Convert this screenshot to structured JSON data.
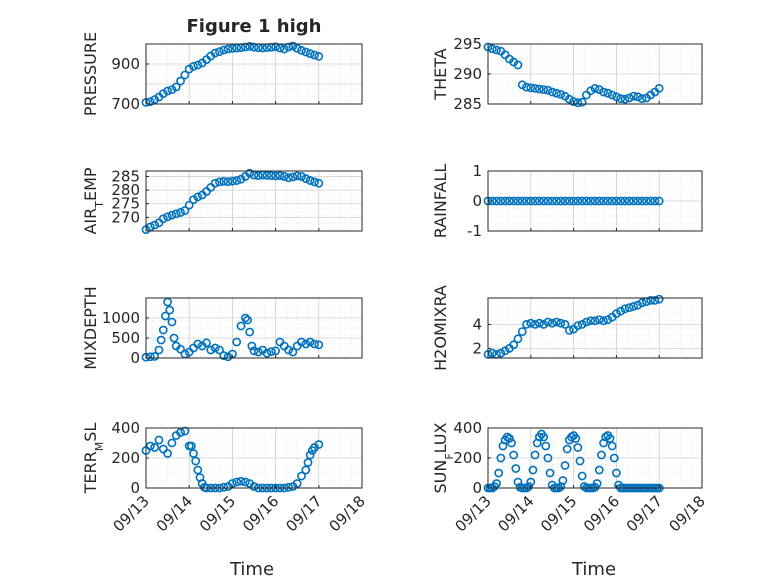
{
  "chart_data": [
    {
      "type": "scatter",
      "title": "Figure 1 high",
      "ylabel": "PRESSURE",
      "xlabel": "",
      "xlim": [
        "09/13",
        "09/18"
      ],
      "ylim": [
        700,
        1000
      ],
      "yticks": [
        "700",
        "900"
      ],
      "yticks_extra": [
        "800"
      ],
      "xticks": [],
      "grid": true,
      "marker": "o",
      "color": "#0072BD",
      "x": [
        0,
        0.1,
        0.2,
        0.3,
        0.4,
        0.5,
        0.6,
        0.7,
        0.8,
        0.9,
        1.0,
        1.1,
        1.2,
        1.3,
        1.4,
        1.5,
        1.6,
        1.7,
        1.8,
        1.9,
        2.0,
        2.1,
        2.2,
        2.3,
        2.4,
        2.5,
        2.6,
        2.7,
        2.8,
        2.9,
        3.0,
        3.1,
        3.2,
        3.3,
        3.4,
        3.5,
        3.6,
        3.7,
        3.8,
        3.9,
        4.0
      ],
      "values": [
        708,
        712,
        722,
        735,
        752,
        765,
        772,
        785,
        815,
        845,
        875,
        888,
        895,
        905,
        922,
        940,
        955,
        962,
        970,
        975,
        978,
        980,
        982,
        985,
        988,
        984,
        982,
        980,
        982,
        984,
        986,
        980,
        975,
        985,
        990,
        978,
        968,
        960,
        952,
        945,
        938
      ]
    },
    {
      "type": "scatter",
      "title": "",
      "ylabel": "THETA",
      "xlabel": "",
      "xlim": [
        "09/13",
        "09/18"
      ],
      "ylim": [
        285,
        295
      ],
      "yticks": [
        "285",
        "290",
        "295"
      ],
      "xticks": [],
      "grid": true,
      "marker": "o",
      "color": "#0072BD",
      "x": [
        0,
        0.1,
        0.2,
        0.3,
        0.4,
        0.5,
        0.6,
        0.7,
        0.8,
        0.9,
        1.0,
        1.1,
        1.2,
        1.3,
        1.4,
        1.5,
        1.6,
        1.7,
        1.8,
        1.9,
        2.0,
        2.1,
        2.2,
        2.3,
        2.4,
        2.5,
        2.6,
        2.7,
        2.8,
        2.9,
        3.0,
        3.1,
        3.2,
        3.3,
        3.4,
        3.5,
        3.6,
        3.7,
        3.8,
        3.9,
        4.0
      ],
      "values": [
        294.5,
        294.2,
        294.0,
        293.8,
        293.2,
        292.5,
        292.0,
        291.5,
        288.2,
        287.8,
        287.7,
        287.6,
        287.5,
        287.4,
        287.3,
        287.0,
        286.8,
        286.6,
        286.3,
        285.8,
        285.4,
        285.2,
        285.3,
        286.5,
        287.2,
        287.6,
        287.4,
        287.0,
        286.8,
        286.5,
        286.2,
        285.9,
        285.8,
        286.0,
        286.3,
        286.2,
        285.9,
        286.0,
        286.5,
        287.0,
        287.6
      ]
    },
    {
      "type": "scatter",
      "title": "",
      "ylabel": "AIR_TEMP",
      "xlabel": "",
      "xlim": [
        "09/13",
        "09/18"
      ],
      "ylim": [
        265,
        287
      ],
      "yticks": [
        "270",
        "275",
        "280",
        "285"
      ],
      "xticks": [],
      "grid": true,
      "marker": "o",
      "color": "#0072BD",
      "x": [
        0,
        0.1,
        0.2,
        0.3,
        0.4,
        0.5,
        0.6,
        0.7,
        0.8,
        0.9,
        1.0,
        1.1,
        1.2,
        1.3,
        1.4,
        1.5,
        1.6,
        1.7,
        1.8,
        1.9,
        2.0,
        2.1,
        2.2,
        2.3,
        2.4,
        2.5,
        2.6,
        2.7,
        2.8,
        2.9,
        3.0,
        3.1,
        3.2,
        3.3,
        3.4,
        3.5,
        3.6,
        3.7,
        3.8,
        3.9,
        4.0
      ],
      "values": [
        265.5,
        266.5,
        267.2,
        268.0,
        269.5,
        270.2,
        270.8,
        271.3,
        271.8,
        272.5,
        274.5,
        276.5,
        277.5,
        278.2,
        279.5,
        281.0,
        282.5,
        283.0,
        283.2,
        283.1,
        283.3,
        283.5,
        284.0,
        285.0,
        286.2,
        285.5,
        285.3,
        285.5,
        285.4,
        285.3,
        285.2,
        285.3,
        285.0,
        284.5,
        284.8,
        285.2,
        285.0,
        284.2,
        283.5,
        283.0,
        282.5
      ]
    },
    {
      "type": "scatter",
      "title": "",
      "ylabel": "RAINFALL",
      "xlabel": "",
      "xlim": [
        "09/13",
        "09/18"
      ],
      "ylim": [
        -1,
        1
      ],
      "yticks": [
        "-1",
        "0",
        "1"
      ],
      "xticks": [],
      "grid": true,
      "marker": "o",
      "color": "#0072BD",
      "x": [
        0,
        0.1,
        0.2,
        0.3,
        0.4,
        0.5,
        0.6,
        0.7,
        0.8,
        0.9,
        1.0,
        1.1,
        1.2,
        1.3,
        1.4,
        1.5,
        1.6,
        1.7,
        1.8,
        1.9,
        2.0,
        2.1,
        2.2,
        2.3,
        2.4,
        2.5,
        2.6,
        2.7,
        2.8,
        2.9,
        3.0,
        3.1,
        3.2,
        3.3,
        3.4,
        3.5,
        3.6,
        3.7,
        3.8,
        3.9,
        4.0
      ],
      "values": [
        0,
        0,
        0,
        0,
        0,
        0,
        0,
        0,
        0,
        0,
        0,
        0,
        0,
        0,
        0,
        0,
        0,
        0,
        0,
        0,
        0,
        0,
        0,
        0,
        0,
        0,
        0,
        0,
        0,
        0,
        0,
        0,
        0,
        0,
        0,
        0,
        0,
        0,
        0,
        0,
        0
      ]
    },
    {
      "type": "scatter",
      "title": "",
      "ylabel": "MIXDEPTH",
      "xlabel": "",
      "xlim": [
        "09/13",
        "09/18"
      ],
      "ylim": [
        0,
        1500
      ],
      "yticks": [
        "0",
        "500",
        "1000"
      ],
      "xticks": [],
      "grid": true,
      "marker": "o",
      "color": "#0072BD",
      "x": [
        0,
        0.1,
        0.2,
        0.3,
        0.35,
        0.4,
        0.45,
        0.5,
        0.55,
        0.6,
        0.65,
        0.7,
        0.8,
        0.9,
        1.0,
        1.1,
        1.2,
        1.3,
        1.4,
        1.5,
        1.6,
        1.7,
        1.8,
        1.9,
        2.0,
        2.1,
        2.2,
        2.3,
        2.35,
        2.4,
        2.45,
        2.5,
        2.6,
        2.7,
        2.8,
        2.9,
        3.0,
        3.1,
        3.2,
        3.3,
        3.4,
        3.5,
        3.6,
        3.7,
        3.8,
        3.9,
        4.0
      ],
      "values": [
        20,
        30,
        40,
        200,
        450,
        700,
        1050,
        1400,
        1200,
        900,
        500,
        300,
        220,
        100,
        150,
        250,
        350,
        300,
        380,
        200,
        250,
        200,
        60,
        30,
        100,
        400,
        800,
        1000,
        950,
        650,
        300,
        180,
        150,
        200,
        120,
        160,
        180,
        400,
        300,
        200,
        150,
        300,
        400,
        350,
        400,
        350,
        330
      ]
    },
    {
      "type": "scatter",
      "title": "",
      "ylabel": "H2OMIXRA",
      "xlabel": "",
      "xlim": [
        "09/13",
        "09/18"
      ],
      "ylim": [
        1.2,
        6.2
      ],
      "yticks": [
        "2",
        "4"
      ],
      "xticks": [],
      "grid": true,
      "marker": "o",
      "color": "#0072BD",
      "x": [
        0,
        0.1,
        0.2,
        0.3,
        0.4,
        0.5,
        0.6,
        0.7,
        0.8,
        0.9,
        1.0,
        1.1,
        1.2,
        1.3,
        1.4,
        1.5,
        1.6,
        1.7,
        1.8,
        1.9,
        2.0,
        2.1,
        2.2,
        2.3,
        2.4,
        2.5,
        2.6,
        2.7,
        2.8,
        2.9,
        3.0,
        3.1,
        3.2,
        3.3,
        3.4,
        3.5,
        3.6,
        3.7,
        3.8,
        3.9,
        4.0
      ],
      "values": [
        1.5,
        1.6,
        1.5,
        1.6,
        1.8,
        2.0,
        2.3,
        2.8,
        3.4,
        4.0,
        4.1,
        4.0,
        4.1,
        4.0,
        4.2,
        4.1,
        4.2,
        4.1,
        4.0,
        3.5,
        3.6,
        3.9,
        4.0,
        4.2,
        4.3,
        4.3,
        4.4,
        4.3,
        4.4,
        4.6,
        4.9,
        5.1,
        5.3,
        5.4,
        5.5,
        5.6,
        5.8,
        5.9,
        6.0,
        6.0,
        6.1
      ]
    },
    {
      "type": "scatter",
      "title": "",
      "ylabel": "TERR_MSL",
      "xlabel": "",
      "xlim": [
        "09/13",
        "09/18"
      ],
      "ylim": [
        0,
        400
      ],
      "yticks": [
        "0",
        "200",
        "400"
      ],
      "xticks": [
        "09/13",
        "09/14",
        "09/15",
        "09/16",
        "09/17",
        "09/18"
      ],
      "grid": true,
      "marker": "o",
      "color": "#0072BD",
      "x": [
        0,
        0.1,
        0.2,
        0.3,
        0.4,
        0.5,
        0.6,
        0.7,
        0.8,
        0.9,
        1.0,
        1.05,
        1.1,
        1.15,
        1.2,
        1.25,
        1.3,
        1.35,
        1.4,
        1.5,
        1.6,
        1.7,
        1.8,
        1.9,
        2.0,
        2.1,
        2.2,
        2.3,
        2.4,
        2.5,
        2.6,
        2.7,
        2.8,
        2.9,
        3.0,
        3.1,
        3.2,
        3.3,
        3.4,
        3.5,
        3.6,
        3.7,
        3.75,
        3.8,
        3.85,
        3.9,
        4.0
      ],
      "values": [
        250,
        280,
        270,
        320,
        260,
        230,
        300,
        350,
        370,
        380,
        280,
        280,
        230,
        180,
        120,
        70,
        30,
        5,
        0,
        0,
        0,
        0,
        5,
        10,
        30,
        40,
        45,
        40,
        30,
        10,
        0,
        0,
        0,
        0,
        0,
        0,
        0,
        5,
        10,
        30,
        80,
        120,
        170,
        220,
        250,
        270,
        290
      ]
    },
    {
      "type": "scatter",
      "title": "",
      "ylabel": "SUN_FLUX",
      "xlabel": "",
      "xlim": [
        "09/13",
        "09/18"
      ],
      "ylim": [
        0,
        400
      ],
      "yticks": [
        "0",
        "200",
        "400"
      ],
      "xticks": [
        "09/13",
        "09/14",
        "09/15",
        "09/16",
        "09/17",
        "09/18"
      ],
      "grid": true,
      "marker": "o",
      "color": "#0072BD",
      "x": [
        0,
        0.05,
        0.1,
        0.15,
        0.2,
        0.25,
        0.3,
        0.35,
        0.4,
        0.45,
        0.5,
        0.55,
        0.6,
        0.65,
        0.7,
        0.75,
        0.8,
        0.85,
        0.9,
        0.95,
        1.0,
        1.05,
        1.1,
        1.15,
        1.2,
        1.25,
        1.3,
        1.35,
        1.4,
        1.45,
        1.5,
        1.55,
        1.6,
        1.65,
        1.7,
        1.75,
        1.8,
        1.85,
        1.9,
        1.95,
        2.0,
        2.05,
        2.1,
        2.15,
        2.2,
        2.25,
        2.3,
        2.35,
        2.4,
        2.45,
        2.5,
        2.55,
        2.6,
        2.65,
        2.7,
        2.75,
        2.8,
        2.85,
        2.9,
        2.95,
        3.0,
        3.05,
        3.1,
        3.15,
        3.2,
        3.25,
        3.3,
        3.35,
        3.4,
        3.45,
        3.5,
        3.55,
        3.6,
        3.65,
        3.7,
        3.75,
        3.8,
        3.85,
        3.9,
        3.95,
        4.0
      ],
      "values": [
        0,
        0,
        0,
        10,
        30,
        100,
        200,
        280,
        320,
        340,
        330,
        300,
        220,
        130,
        40,
        5,
        0,
        0,
        0,
        10,
        40,
        120,
        220,
        300,
        340,
        360,
        340,
        280,
        200,
        100,
        20,
        0,
        0,
        0,
        10,
        50,
        150,
        260,
        320,
        340,
        350,
        330,
        270,
        180,
        80,
        10,
        0,
        0,
        0,
        0,
        5,
        30,
        120,
        220,
        300,
        340,
        350,
        330,
        280,
        200,
        100,
        20,
        0,
        0,
        0,
        0,
        0,
        0,
        0,
        0,
        0,
        0,
        0,
        0,
        0,
        0,
        0,
        0,
        0,
        0,
        0
      ]
    }
  ],
  "shared": {
    "xlabel": "Time",
    "xtick_labels": [
      "09/13",
      "09/14",
      "09/15",
      "09/16",
      "09/17",
      "09/18"
    ]
  }
}
